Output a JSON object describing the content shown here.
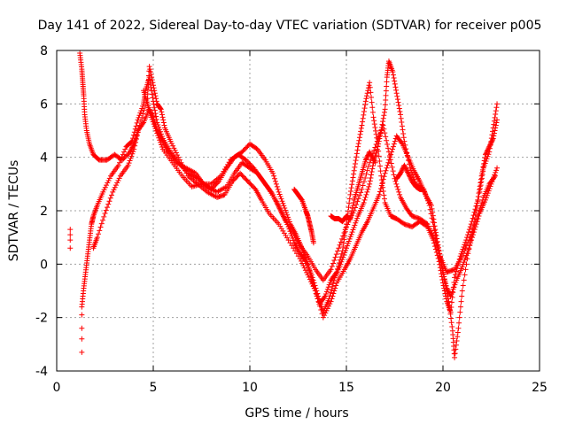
{
  "chart_data": {
    "type": "scatter",
    "title": "Day 141 of 2022, Sidereal Day-to-day VTEC variation (SDTVAR) for receiver p005",
    "xlabel": "GPS time / hours",
    "ylabel": "SDTVAR / TECUs",
    "xlim": [
      0,
      25
    ],
    "ylim": [
      -4,
      8
    ],
    "xticks": [
      0,
      5,
      10,
      15,
      20,
      25
    ],
    "yticks": [
      -4,
      -2,
      0,
      2,
      4,
      6,
      8
    ],
    "xtick_labels": [
      "0",
      "5",
      "10",
      "15",
      "20",
      "25"
    ],
    "ytick_labels": [
      "-4",
      "-2",
      "0",
      "2",
      "4",
      "6",
      "8"
    ],
    "grid": true,
    "marker": "+",
    "marker_color": "#ff0000",
    "series": [
      {
        "name": "isolated",
        "points": [
          [
            0.7,
            1.3
          ],
          [
            0.7,
            1.1
          ],
          [
            0.7,
            0.9
          ],
          [
            0.7,
            0.6
          ],
          [
            1.3,
            -3.3
          ],
          [
            1.3,
            -2.8
          ],
          [
            1.3,
            -2.4
          ],
          [
            1.3,
            -1.9
          ]
        ]
      },
      {
        "name": "arc1",
        "points": [
          [
            1.2,
            7.9
          ],
          [
            1.3,
            7.3
          ],
          [
            1.35,
            6.8
          ],
          [
            1.4,
            6.3
          ],
          [
            1.45,
            5.6
          ],
          [
            1.55,
            5.0
          ],
          [
            1.7,
            4.5
          ],
          [
            1.9,
            4.1
          ],
          [
            2.2,
            3.9
          ],
          [
            2.6,
            3.9
          ],
          [
            3.0,
            4.1
          ],
          [
            3.4,
            3.9
          ],
          [
            3.8,
            4.2
          ],
          [
            4.0,
            4.5
          ],
          [
            4.2,
            5.0
          ],
          [
            4.5,
            5.3
          ],
          [
            4.8,
            5.8
          ],
          [
            5.0,
            5.5
          ],
          [
            5.2,
            5.0
          ],
          [
            5.5,
            4.6
          ],
          [
            5.8,
            4.2
          ],
          [
            6.2,
            3.8
          ],
          [
            6.7,
            3.6
          ],
          [
            7.2,
            3.4
          ],
          [
            7.6,
            3.0
          ],
          [
            8.0,
            2.8
          ],
          [
            8.4,
            3.1
          ],
          [
            8.8,
            3.6
          ],
          [
            9.2,
            4.0
          ],
          [
            9.6,
            4.2
          ],
          [
            10.0,
            4.5
          ],
          [
            10.4,
            4.3
          ],
          [
            10.8,
            3.9
          ],
          [
            11.2,
            3.4
          ],
          [
            11.5,
            2.7
          ],
          [
            11.8,
            2.1
          ],
          [
            12.1,
            1.5
          ],
          [
            12.4,
            1.1
          ],
          [
            12.7,
            0.6
          ],
          [
            13.0,
            0.0
          ],
          [
            13.3,
            -0.8
          ],
          [
            13.6,
            -1.5
          ],
          [
            13.9,
            -1.2
          ],
          [
            14.2,
            -0.6
          ],
          [
            14.5,
            -0.3
          ],
          [
            14.8,
            0.5
          ],
          [
            15.0,
            1.5
          ],
          [
            15.2,
            2.6
          ],
          [
            15.4,
            3.5
          ],
          [
            15.6,
            4.4
          ],
          [
            15.8,
            5.2
          ],
          [
            16.0,
            6.1
          ],
          [
            16.2,
            6.8
          ],
          [
            16.4,
            5.5
          ],
          [
            16.6,
            4.6
          ],
          [
            16.8,
            3.3
          ],
          [
            17.0,
            2.3
          ],
          [
            17.3,
            1.8
          ],
          [
            17.6,
            1.7
          ],
          [
            18.0,
            1.5
          ],
          [
            18.4,
            1.4
          ],
          [
            18.8,
            1.6
          ],
          [
            19.2,
            1.4
          ],
          [
            19.5,
            0.9
          ],
          [
            19.8,
            0.1
          ],
          [
            20.0,
            -0.7
          ],
          [
            20.2,
            -1.4
          ],
          [
            20.4,
            -1.8
          ],
          [
            20.6,
            -0.5
          ],
          [
            20.9,
            0.3
          ],
          [
            21.2,
            0.9
          ],
          [
            21.5,
            1.6
          ],
          [
            21.8,
            2.4
          ],
          [
            22.0,
            3.3
          ],
          [
            22.2,
            4.1
          ],
          [
            22.4,
            4.4
          ],
          [
            22.6,
            4.7
          ],
          [
            22.8,
            5.4
          ]
        ]
      },
      {
        "name": "arc2",
        "points": [
          [
            1.3,
            -1.6
          ],
          [
            1.4,
            -0.9
          ],
          [
            1.5,
            -0.3
          ],
          [
            1.6,
            0.3
          ],
          [
            1.7,
            0.9
          ],
          [
            1.8,
            1.5
          ],
          [
            1.9,
            1.8
          ],
          [
            2.1,
            2.2
          ],
          [
            2.4,
            2.7
          ],
          [
            2.8,
            3.3
          ],
          [
            3.2,
            3.7
          ],
          [
            3.6,
            4.4
          ],
          [
            3.9,
            4.6
          ],
          [
            4.2,
            5.4
          ],
          [
            4.5,
            6.0
          ],
          [
            4.6,
            6.5
          ],
          [
            4.8,
            7.0
          ],
          [
            5.0,
            6.1
          ],
          [
            5.2,
            5.3
          ],
          [
            5.5,
            4.7
          ],
          [
            5.9,
            4.2
          ],
          [
            6.3,
            3.8
          ],
          [
            6.8,
            3.4
          ],
          [
            7.3,
            3.2
          ],
          [
            7.8,
            2.9
          ],
          [
            8.3,
            2.7
          ],
          [
            8.8,
            2.9
          ],
          [
            9.2,
            3.4
          ],
          [
            9.6,
            3.8
          ],
          [
            10.0,
            3.6
          ],
          [
            10.4,
            3.4
          ],
          [
            10.8,
            3.0
          ],
          [
            11.2,
            2.6
          ],
          [
            11.6,
            2.0
          ],
          [
            12.0,
            1.4
          ],
          [
            12.3,
            0.8
          ],
          [
            12.6,
            0.4
          ],
          [
            12.9,
            0.1
          ],
          [
            13.2,
            -0.4
          ],
          [
            13.5,
            -1.1
          ],
          [
            13.8,
            -1.8
          ],
          [
            14.1,
            -1.3
          ],
          [
            14.4,
            -0.5
          ],
          [
            14.7,
            0.0
          ],
          [
            15.0,
            0.6
          ],
          [
            15.3,
            1.2
          ],
          [
            15.6,
            1.8
          ],
          [
            15.9,
            2.3
          ],
          [
            16.2,
            3.0
          ],
          [
            16.4,
            3.8
          ],
          [
            16.6,
            4.3
          ],
          [
            16.8,
            5.0
          ],
          [
            17.0,
            5.8
          ],
          [
            17.1,
            7.0
          ],
          [
            17.2,
            7.6
          ],
          [
            17.4,
            7.2
          ],
          [
            17.6,
            6.4
          ],
          [
            17.8,
            5.6
          ],
          [
            18.0,
            4.6
          ],
          [
            18.3,
            3.6
          ],
          [
            18.6,
            3.0
          ],
          [
            19.0,
            2.8
          ],
          [
            19.3,
            2.2
          ],
          [
            19.6,
            1.1
          ],
          [
            19.9,
            0.1
          ],
          [
            20.1,
            -0.7
          ],
          [
            20.3,
            -1.4
          ],
          [
            20.5,
            -2.5
          ],
          [
            20.6,
            -3.5
          ],
          [
            20.8,
            -2.4
          ],
          [
            21.0,
            -1.0
          ],
          [
            21.3,
            0.4
          ],
          [
            21.6,
            1.5
          ],
          [
            21.9,
            2.7
          ],
          [
            22.1,
            3.6
          ],
          [
            22.4,
            4.2
          ],
          [
            22.6,
            5.1
          ],
          [
            22.8,
            6.0
          ]
        ]
      },
      {
        "name": "arc3",
        "points": [
          [
            1.9,
            0.6
          ],
          [
            2.1,
            1.0
          ],
          [
            2.5,
            1.9
          ],
          [
            2.9,
            2.7
          ],
          [
            3.3,
            3.3
          ],
          [
            3.7,
            3.7
          ],
          [
            4.0,
            4.3
          ],
          [
            4.3,
            5.2
          ],
          [
            4.7,
            6.2
          ],
          [
            4.8,
            7.4
          ],
          [
            5.0,
            6.7
          ],
          [
            5.2,
            6.0
          ],
          [
            5.4,
            5.8
          ],
          [
            5.6,
            5.1
          ],
          [
            5.9,
            4.6
          ],
          [
            6.3,
            4.0
          ],
          [
            6.8,
            3.3
          ],
          [
            7.3,
            3.0
          ],
          [
            7.8,
            2.7
          ],
          [
            8.3,
            2.5
          ],
          [
            8.7,
            2.6
          ],
          [
            9.1,
            3.1
          ],
          [
            9.5,
            3.4
          ],
          [
            9.9,
            3.1
          ],
          [
            10.3,
            2.8
          ],
          [
            10.6,
            2.4
          ],
          [
            11.0,
            1.9
          ],
          [
            11.5,
            1.5
          ],
          [
            12.0,
            0.9
          ],
          [
            12.6,
            0.2
          ],
          [
            13.0,
            -0.4
          ],
          [
            13.4,
            -1.0
          ],
          [
            13.8,
            -2.0
          ],
          [
            14.2,
            -1.4
          ],
          [
            14.5,
            -0.7
          ],
          [
            14.9,
            -0.2
          ],
          [
            15.2,
            0.2
          ],
          [
            15.5,
            0.7
          ],
          [
            15.8,
            1.2
          ],
          [
            16.1,
            1.6
          ],
          [
            16.4,
            2.1
          ],
          [
            16.7,
            2.6
          ],
          [
            17.0,
            3.4
          ],
          [
            17.3,
            4.1
          ],
          [
            17.6,
            4.8
          ],
          [
            17.9,
            4.5
          ],
          [
            18.2,
            4.0
          ],
          [
            18.5,
            3.5
          ],
          [
            18.8,
            3.1
          ],
          [
            19.1,
            2.6
          ],
          [
            19.4,
            2.2
          ],
          [
            19.6,
            1.3
          ],
          [
            19.8,
            0.5
          ],
          [
            20.0,
            -0.3
          ],
          [
            20.2,
            -0.9
          ],
          [
            20.4,
            -1.2
          ],
          [
            20.7,
            -0.6
          ],
          [
            21.0,
            -0.1
          ],
          [
            21.3,
            0.5
          ],
          [
            21.6,
            1.2
          ],
          [
            21.9,
            1.9
          ],
          [
            22.2,
            2.4
          ],
          [
            22.5,
            3.0
          ],
          [
            22.8,
            3.6
          ]
        ]
      },
      {
        "name": "arc4",
        "points": [
          [
            4.5,
            6.5
          ],
          [
            4.7,
            6.0
          ],
          [
            4.9,
            5.5
          ],
          [
            5.2,
            4.9
          ],
          [
            5.5,
            4.3
          ],
          [
            6.0,
            3.8
          ],
          [
            6.5,
            3.3
          ],
          [
            7.0,
            2.9
          ],
          [
            7.5,
            3.0
          ],
          [
            8.0,
            3.0
          ],
          [
            8.5,
            3.3
          ],
          [
            9.0,
            3.9
          ],
          [
            9.4,
            4.1
          ],
          [
            9.8,
            3.9
          ],
          [
            10.2,
            3.6
          ],
          [
            10.6,
            3.2
          ],
          [
            11.0,
            2.8
          ],
          [
            11.4,
            2.3
          ],
          [
            11.8,
            1.7
          ],
          [
            12.2,
            1.2
          ],
          [
            12.6,
            0.7
          ],
          [
            13.0,
            0.3
          ],
          [
            13.4,
            -0.2
          ],
          [
            13.8,
            -0.6
          ],
          [
            14.2,
            -0.2
          ],
          [
            14.6,
            0.6
          ],
          [
            15.0,
            1.4
          ],
          [
            15.4,
            2.0
          ],
          [
            15.8,
            2.8
          ],
          [
            16.2,
            3.8
          ],
          [
            16.6,
            4.6
          ],
          [
            16.9,
            5.2
          ],
          [
            17.2,
            4.2
          ],
          [
            17.5,
            3.2
          ],
          [
            17.8,
            2.5
          ],
          [
            18.1,
            2.1
          ],
          [
            18.4,
            1.8
          ],
          [
            18.8,
            1.7
          ],
          [
            19.2,
            1.5
          ],
          [
            19.6,
            0.9
          ],
          [
            19.9,
            0.2
          ],
          [
            20.2,
            -0.3
          ],
          [
            20.6,
            -0.2
          ],
          [
            21.0,
            0.3
          ],
          [
            21.4,
            1.0
          ],
          [
            21.8,
            1.8
          ],
          [
            22.1,
            2.5
          ],
          [
            22.4,
            3.0
          ],
          [
            22.7,
            3.3
          ]
        ]
      },
      {
        "name": "segment-12-13",
        "points": [
          [
            12.3,
            2.8
          ],
          [
            12.5,
            2.6
          ],
          [
            12.7,
            2.4
          ],
          [
            12.9,
            2.0
          ],
          [
            13.0,
            1.8
          ],
          [
            13.1,
            1.5
          ],
          [
            13.2,
            1.2
          ],
          [
            13.3,
            0.8
          ]
        ]
      },
      {
        "name": "segment-14-16",
        "points": [
          [
            14.2,
            1.8
          ],
          [
            14.4,
            1.7
          ],
          [
            14.6,
            1.7
          ],
          [
            14.8,
            1.6
          ],
          [
            15.0,
            1.8
          ],
          [
            15.2,
            1.7
          ],
          [
            15.4,
            2.4
          ],
          [
            15.6,
            2.9
          ],
          [
            15.8,
            3.4
          ],
          [
            16.0,
            3.9
          ],
          [
            16.2,
            4.2
          ],
          [
            16.5,
            3.8
          ]
        ]
      },
      {
        "name": "segment-17-19",
        "points": [
          [
            17.6,
            3.2
          ],
          [
            17.8,
            3.4
          ],
          [
            18.0,
            3.7
          ],
          [
            18.2,
            3.4
          ],
          [
            18.4,
            3.1
          ],
          [
            18.6,
            2.9
          ],
          [
            18.8,
            2.8
          ],
          [
            19.0,
            2.8
          ]
        ]
      }
    ]
  }
}
